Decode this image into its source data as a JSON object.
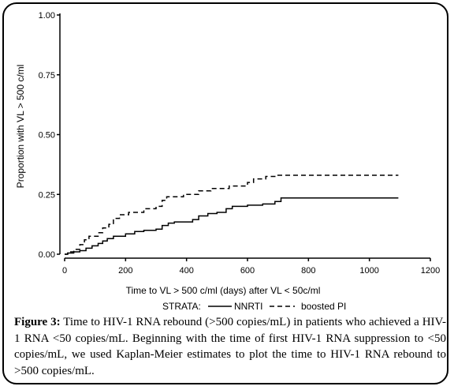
{
  "chart_data": {
    "type": "line",
    "title": "",
    "xlabel": "Time to VL > 500 c/ml (days) after VL < 50c/ml",
    "ylabel": "Proportion with VL > 500 c/ml",
    "xlim": [
      0,
      1200
    ],
    "ylim": [
      0,
      1
    ],
    "x_ticks": [
      "0",
      "200",
      "400",
      "600",
      "800",
      "1000",
      "1200"
    ],
    "y_ticks": [
      "0.00",
      "0.25",
      "0.50",
      "0.75",
      "1.00"
    ],
    "grid": false,
    "legend_title": "STRATA:",
    "series": [
      {
        "name": "NNRTI",
        "style": "solid",
        "points": [
          [
            0,
            0
          ],
          [
            10,
            0.005
          ],
          [
            30,
            0.01
          ],
          [
            50,
            0.015
          ],
          [
            70,
            0.025
          ],
          [
            90,
            0.035
          ],
          [
            110,
            0.045
          ],
          [
            125,
            0.055
          ],
          [
            140,
            0.065
          ],
          [
            160,
            0.075
          ],
          [
            200,
            0.085
          ],
          [
            230,
            0.095
          ],
          [
            260,
            0.1
          ],
          [
            300,
            0.105
          ],
          [
            320,
            0.12
          ],
          [
            340,
            0.13
          ],
          [
            360,
            0.135
          ],
          [
            420,
            0.145
          ],
          [
            440,
            0.16
          ],
          [
            470,
            0.17
          ],
          [
            500,
            0.175
          ],
          [
            530,
            0.19
          ],
          [
            550,
            0.2
          ],
          [
            600,
            0.205
          ],
          [
            650,
            0.21
          ],
          [
            690,
            0.22
          ],
          [
            710,
            0.235
          ],
          [
            1095,
            0.235
          ]
        ]
      },
      {
        "name": "boosted PI",
        "style": "dashed",
        "points": [
          [
            0,
            0
          ],
          [
            10,
            0.01
          ],
          [
            30,
            0.02
          ],
          [
            50,
            0.04
          ],
          [
            65,
            0.06
          ],
          [
            80,
            0.075
          ],
          [
            110,
            0.09
          ],
          [
            125,
            0.11
          ],
          [
            145,
            0.125
          ],
          [
            160,
            0.15
          ],
          [
            180,
            0.165
          ],
          [
            210,
            0.175
          ],
          [
            260,
            0.19
          ],
          [
            300,
            0.2
          ],
          [
            320,
            0.225
          ],
          [
            335,
            0.24
          ],
          [
            390,
            0.25
          ],
          [
            440,
            0.265
          ],
          [
            480,
            0.275
          ],
          [
            540,
            0.285
          ],
          [
            600,
            0.3
          ],
          [
            620,
            0.315
          ],
          [
            660,
            0.325
          ],
          [
            700,
            0.33
          ],
          [
            1095,
            0.33
          ]
        ]
      }
    ]
  },
  "caption": {
    "label": "Figure 3:",
    "text": " Time to HIV-1 RNA rebound (>500 copies/mL) in patients who achieved a HIV-1 RNA <50 copies/mL. Beginning with the time of first HIV-1 RNA suppression to <50 copies/mL, we used Kaplan-Meier estimates to plot the time to HIV-1 RNA rebound to >500 copies/mL."
  }
}
